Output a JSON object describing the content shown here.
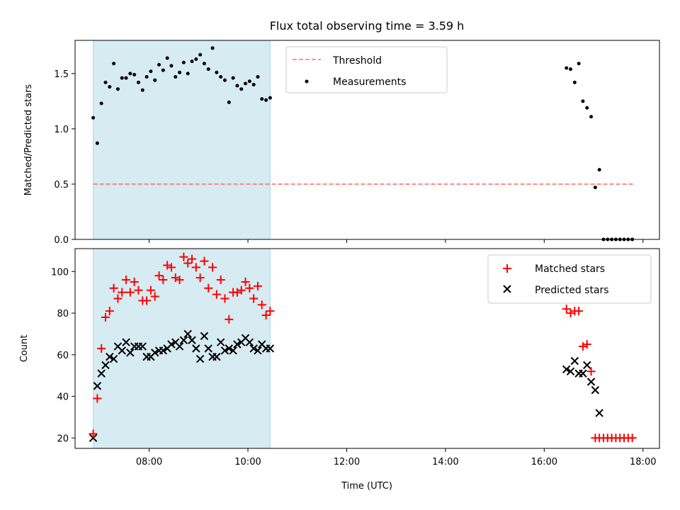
{
  "title": "Flux total observing time = 3.59 h",
  "colors": {
    "shade": "#add8e6",
    "threshold": "#ff7070",
    "measurement": "#000000",
    "matched": "#ff0000",
    "predicted": "#000000"
  },
  "chart_data": [
    {
      "type": "scatter",
      "ylabel": "Matched/Predicted stars",
      "xlim": [
        "06:30",
        "18:20"
      ],
      "ylim": [
        0,
        1.8
      ],
      "yticks": [
        0.0,
        0.5,
        1.0,
        1.5
      ],
      "ytick_labels": [
        "0.0",
        "0.5",
        "1.0",
        "1.5"
      ],
      "shaded_span": [
        "06:52",
        "10:27"
      ],
      "legend_position": "upper-center",
      "threshold": {
        "name": "Threshold",
        "value": 0.5,
        "x": [
          "06:52",
          "17:50"
        ],
        "style": "dashed"
      },
      "series": [
        {
          "name": "Measurements",
          "x": [
            "06:52",
            "06:57",
            "07:02",
            "07:07",
            "07:12",
            "07:17",
            "07:22",
            "07:27",
            "07:32",
            "07:37",
            "07:42",
            "07:47",
            "07:52",
            "07:57",
            "08:02",
            "08:07",
            "08:12",
            "08:17",
            "08:22",
            "08:27",
            "08:32",
            "08:37",
            "08:42",
            "08:47",
            "08:52",
            "08:57",
            "09:02",
            "09:07",
            "09:12",
            "09:17",
            "09:22",
            "09:27",
            "09:32",
            "09:37",
            "09:42",
            "09:47",
            "09:52",
            "09:57",
            "10:02",
            "10:07",
            "10:12",
            "10:17",
            "10:22",
            "10:27",
            "16:27",
            "16:32",
            "16:37",
            "16:42",
            "16:47",
            "16:52",
            "16:57",
            "17:02",
            "17:07",
            "17:12",
            "17:17",
            "17:22",
            "17:27",
            "17:32",
            "17:37",
            "17:42",
            "17:47"
          ],
          "y": [
            1.1,
            0.87,
            1.23,
            1.42,
            1.38,
            1.59,
            1.36,
            1.46,
            1.46,
            1.5,
            1.49,
            1.42,
            1.35,
            1.47,
            1.52,
            1.44,
            1.58,
            1.53,
            1.64,
            1.57,
            1.47,
            1.51,
            1.6,
            1.5,
            1.61,
            1.63,
            1.67,
            1.59,
            1.54,
            1.73,
            1.51,
            1.47,
            1.44,
            1.24,
            1.46,
            1.39,
            1.36,
            1.41,
            1.43,
            1.4,
            1.47,
            1.27,
            1.26,
            1.28,
            1.55,
            1.54,
            1.42,
            1.59,
            1.25,
            1.19,
            1.11,
            0.47,
            0.63,
            0.0,
            0.0,
            0.0,
            0.0,
            0.0,
            0.0,
            0.0,
            0.0
          ]
        }
      ]
    },
    {
      "type": "scatter",
      "xlabel": "Time (UTC)",
      "ylabel": "Count",
      "xlim": [
        "06:30",
        "18:20"
      ],
      "ylim": [
        15,
        111
      ],
      "xticks": [
        "08:00",
        "10:00",
        "12:00",
        "14:00",
        "16:00",
        "18:00"
      ],
      "yticks": [
        20,
        40,
        60,
        80,
        100
      ],
      "shaded_span": [
        "06:52",
        "10:27"
      ],
      "legend_position": "upper-right",
      "series": [
        {
          "name": "Matched stars",
          "marker": "+",
          "x": [
            "06:52",
            "06:57",
            "07:02",
            "07:07",
            "07:12",
            "07:17",
            "07:22",
            "07:27",
            "07:32",
            "07:37",
            "07:42",
            "07:47",
            "07:52",
            "07:57",
            "08:02",
            "08:07",
            "08:12",
            "08:17",
            "08:22",
            "08:27",
            "08:32",
            "08:37",
            "08:42",
            "08:47",
            "08:52",
            "08:57",
            "09:02",
            "09:07",
            "09:12",
            "09:17",
            "09:22",
            "09:27",
            "09:32",
            "09:37",
            "09:42",
            "09:47",
            "09:52",
            "09:57",
            "10:02",
            "10:07",
            "10:12",
            "10:17",
            "10:22",
            "10:27",
            "16:27",
            "16:32",
            "16:37",
            "16:42",
            "16:47",
            "16:52",
            "16:57",
            "17:02",
            "17:07",
            "17:12",
            "17:17",
            "17:22",
            "17:27",
            "17:32",
            "17:37",
            "17:42",
            "17:47"
          ],
          "y": [
            22,
            39,
            63,
            78,
            81,
            92,
            87,
            90,
            96,
            90,
            95,
            91,
            86,
            86,
            91,
            88,
            98,
            96,
            103,
            102,
            97,
            96,
            107,
            104,
            106,
            102,
            97,
            105,
            92,
            102,
            89,
            96,
            87,
            77,
            90,
            90,
            91,
            95,
            92,
            87,
            93,
            84,
            79,
            81,
            82,
            80,
            81,
            81,
            64,
            65,
            52,
            20,
            20,
            20,
            20,
            20,
            20,
            20,
            20,
            20,
            20
          ]
        },
        {
          "name": "Predicted stars",
          "marker": "x",
          "x": [
            "06:52",
            "06:57",
            "07:02",
            "07:07",
            "07:12",
            "07:17",
            "07:22",
            "07:27",
            "07:32",
            "07:37",
            "07:42",
            "07:47",
            "07:52",
            "07:57",
            "08:02",
            "08:07",
            "08:12",
            "08:17",
            "08:22",
            "08:27",
            "08:32",
            "08:37",
            "08:42",
            "08:47",
            "08:52",
            "08:57",
            "09:02",
            "09:07",
            "09:12",
            "09:17",
            "09:22",
            "09:27",
            "09:32",
            "09:37",
            "09:42",
            "09:47",
            "09:52",
            "09:57",
            "10:02",
            "10:07",
            "10:12",
            "10:17",
            "10:22",
            "10:27",
            "16:27",
            "16:32",
            "16:37",
            "16:42",
            "16:47",
            "16:52",
            "16:57",
            "17:02",
            "17:07"
          ],
          "y": [
            20,
            45,
            51,
            55,
            59,
            58,
            64,
            62,
            66,
            61,
            64,
            64,
            64,
            59,
            59,
            61,
            62,
            62,
            63,
            65,
            66,
            64,
            67,
            70,
            67,
            63,
            58,
            69,
            63,
            59,
            59,
            66,
            62,
            63,
            62,
            65,
            66,
            68,
            66,
            63,
            62,
            65,
            63,
            63,
            53,
            52,
            57,
            51,
            51,
            55,
            47,
            43,
            32
          ]
        }
      ]
    }
  ]
}
